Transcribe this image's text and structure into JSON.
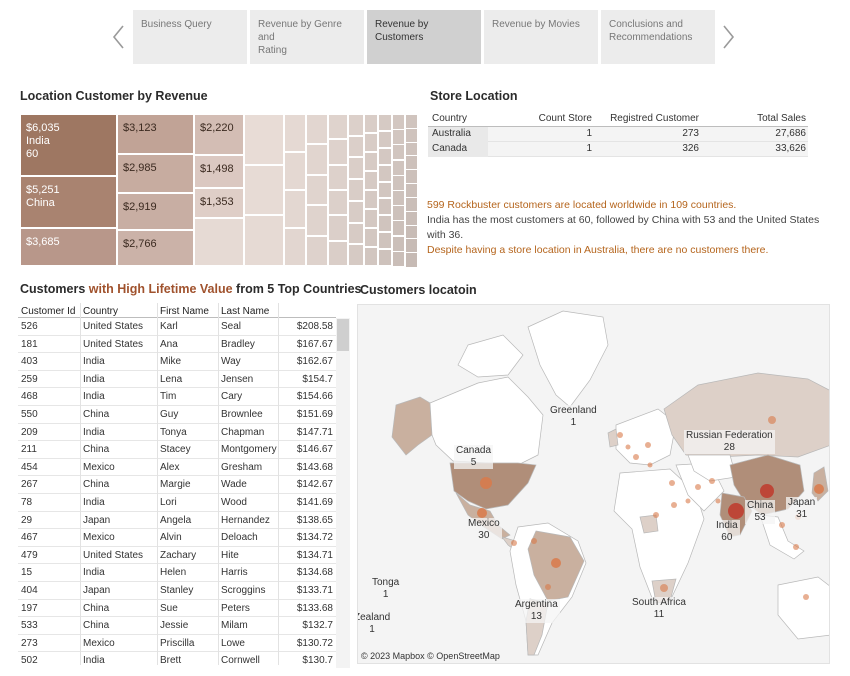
{
  "nav": {
    "tabs": [
      {
        "lines": [
          "Business Query"
        ],
        "active": false
      },
      {
        "lines": [
          "Revenue by Genre and",
          "Rating"
        ],
        "active": false
      },
      {
        "lines": [
          "Revenue by Customers"
        ],
        "active": true
      },
      {
        "lines": [
          "Revenue by Movies"
        ],
        "active": false
      },
      {
        "lines": [
          "Conclusions and",
          "Recommendations"
        ],
        "active": false
      }
    ]
  },
  "treemap": {
    "title": "Location Customer by Revenue",
    "tiles": [
      {
        "value": "$6,035",
        "country": "India",
        "count": "60",
        "shade": "#9e7762"
      },
      {
        "value": "$5,251",
        "country": "China",
        "count": "",
        "shade": "#a98370"
      },
      {
        "value": "$3,685",
        "country": "",
        "count": "",
        "shade": "#b8978a"
      },
      {
        "value": "$3,123",
        "country": "",
        "count": "",
        "shade": "#c1a396"
      },
      {
        "value": "$2,985",
        "country": "",
        "count": "",
        "shade": "#c7aca0"
      },
      {
        "value": "$2,919",
        "country": "",
        "count": "",
        "shade": "#c8aea3"
      },
      {
        "value": "$2,766",
        "country": "",
        "count": "",
        "shade": "#cbb2a8"
      },
      {
        "value": "$2,220",
        "country": "",
        "count": "",
        "shade": "#d3bdb4"
      },
      {
        "value": "$1,498",
        "country": "",
        "count": "",
        "shade": "#dbc8c1"
      },
      {
        "value": "$1,353",
        "country": "",
        "count": "",
        "shade": "#dfcec7"
      }
    ]
  },
  "store": {
    "title": "Store Location",
    "headers": {
      "country": "Country",
      "count": "Count Store",
      "registered": "Registred Customer",
      "sales": "Total Sales"
    },
    "rows": [
      {
        "country": "Australia",
        "count": "1",
        "registered": "273",
        "sales": "27,686"
      },
      {
        "country": "Canada",
        "count": "1",
        "registered": "326",
        "sales": "33,626"
      }
    ]
  },
  "insights": {
    "line1": "599 Rockbuster customers are located worldwide in 109 countries.",
    "line2": "India has the most customers at 60, followed by China with 53 and the United States with 36.",
    "line3": "Despite having a store location in Australia, there are no customers there."
  },
  "customers": {
    "title_a": "Customers ",
    "title_b": "with High Lifetime Value",
    "title_c": " from 5 Top Countries",
    "headers": {
      "id": "Customer Id",
      "country": "Country",
      "first": "First Name",
      "last": "Last Name"
    },
    "rows": [
      {
        "id": "526",
        "country": "United States",
        "first": "Karl",
        "last": "Seal",
        "value": "$208.58"
      },
      {
        "id": "181",
        "country": "United States",
        "first": "Ana",
        "last": "Bradley",
        "value": "$167.67"
      },
      {
        "id": "403",
        "country": "India",
        "first": "Mike",
        "last": "Way",
        "value": "$162.67"
      },
      {
        "id": "259",
        "country": "India",
        "first": "Lena",
        "last": "Jensen",
        "value": "$154.7"
      },
      {
        "id": "468",
        "country": "India",
        "first": "Tim",
        "last": "Cary",
        "value": "$154.66"
      },
      {
        "id": "550",
        "country": "China",
        "first": "Guy",
        "last": "Brownlee",
        "value": "$151.69"
      },
      {
        "id": "209",
        "country": "India",
        "first": "Tonya",
        "last": "Chapman",
        "value": "$147.71"
      },
      {
        "id": "211",
        "country": "China",
        "first": "Stacey",
        "last": "Montgomery",
        "value": "$146.67"
      },
      {
        "id": "454",
        "country": "Mexico",
        "first": "Alex",
        "last": "Gresham",
        "value": "$143.68"
      },
      {
        "id": "267",
        "country": "China",
        "first": "Margie",
        "last": "Wade",
        "value": "$142.67"
      },
      {
        "id": "78",
        "country": "India",
        "first": "Lori",
        "last": "Wood",
        "value": "$141.69"
      },
      {
        "id": "29",
        "country": "Japan",
        "first": "Angela",
        "last": "Hernandez",
        "value": "$138.65"
      },
      {
        "id": "467",
        "country": "Mexico",
        "first": "Alvin",
        "last": "Deloach",
        "value": "$134.72"
      },
      {
        "id": "479",
        "country": "United States",
        "first": "Zachary",
        "last": "Hite",
        "value": "$134.71"
      },
      {
        "id": "15",
        "country": "India",
        "first": "Helen",
        "last": "Harris",
        "value": "$134.68"
      },
      {
        "id": "404",
        "country": "Japan",
        "first": "Stanley",
        "last": "Scroggins",
        "value": "$133.71"
      },
      {
        "id": "197",
        "country": "China",
        "first": "Sue",
        "last": "Peters",
        "value": "$133.68"
      },
      {
        "id": "533",
        "country": "China",
        "first": "Jessie",
        "last": "Milam",
        "value": "$132.7"
      },
      {
        "id": "273",
        "country": "Mexico",
        "first": "Priscilla",
        "last": "Lowe",
        "value": "$130.72"
      },
      {
        "id": "502",
        "country": "India",
        "first": "Brett",
        "last": "Cornwell",
        "value": "$130.7"
      }
    ]
  },
  "map": {
    "title": "Customers locatoin",
    "credit": "© 2023 Mapbox  © OpenStreetMap",
    "labels": [
      {
        "name": "Greenland",
        "count": "1"
      },
      {
        "name": "Canada",
        "count": "5"
      },
      {
        "name": "Russian Federation",
        "count": "28"
      },
      {
        "name": "Mexico",
        "count": "30"
      },
      {
        "name": "China",
        "count": "53"
      },
      {
        "name": "India",
        "count": "60"
      },
      {
        "name": "Japan",
        "count": "31"
      },
      {
        "name": "Tonga",
        "count": "1"
      },
      {
        "name": "Argentina",
        "count": "13"
      },
      {
        "name": "South Africa",
        "count": "11"
      },
      {
        "name": "Zealand",
        "count": "1"
      }
    ],
    "colors": {
      "land": "#ffffff",
      "outline": "#b8b8b8",
      "shade_light": "#ddd0c8",
      "shade_mid": "#c9b09f",
      "shade_dark": "#b08e79",
      "dot": "#d97a4a",
      "dot_big": "#c0392b"
    }
  }
}
